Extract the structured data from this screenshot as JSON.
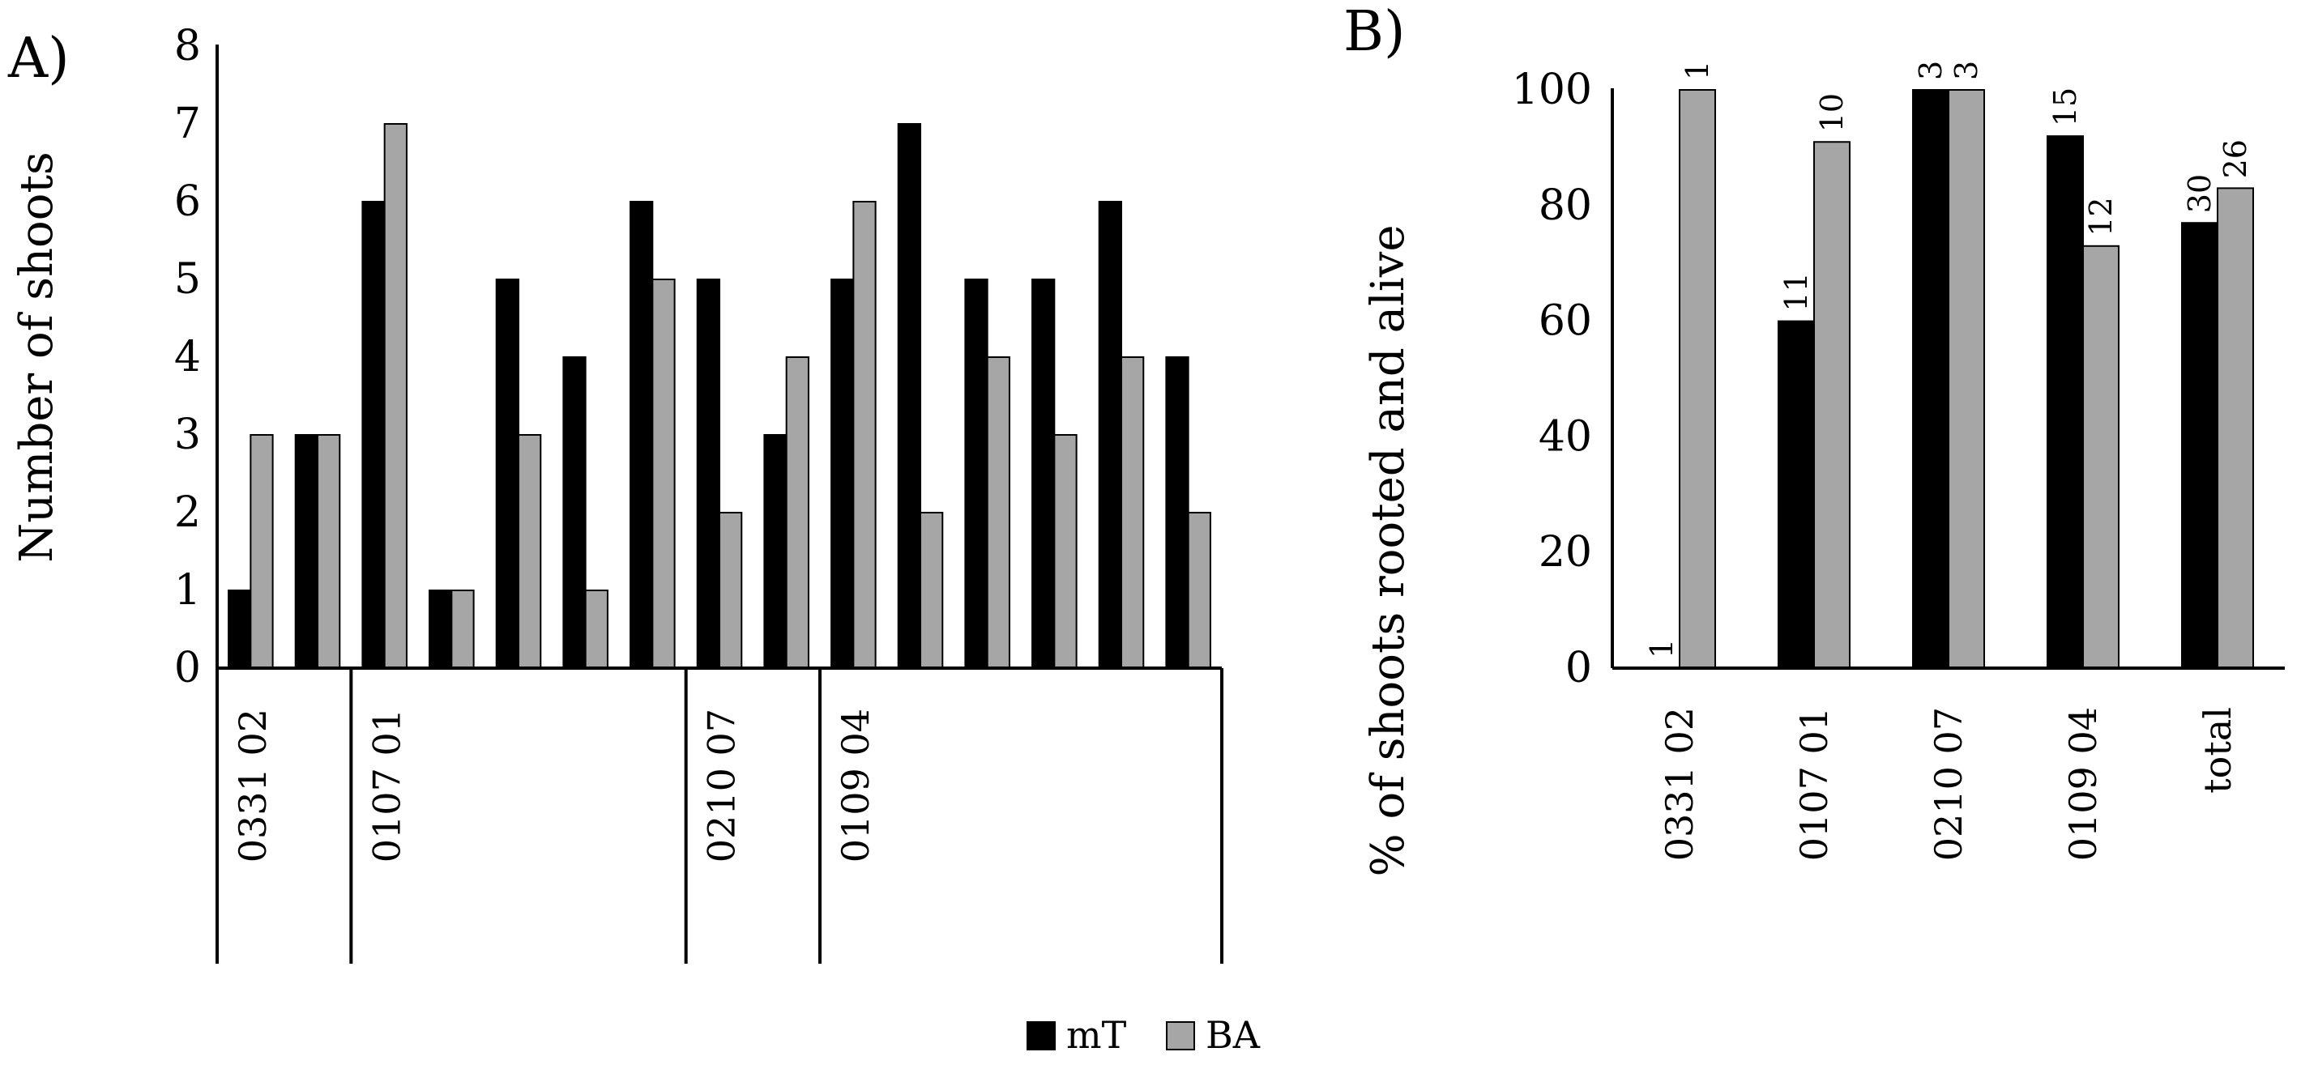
{
  "legend": {
    "items": [
      {
        "label": "mT",
        "color": "#000000"
      },
      {
        "label": "BA",
        "color": "#a6a6a6"
      }
    ],
    "position": "bottom-center"
  },
  "chart_data": [
    {
      "type": "bar",
      "panel": "A)",
      "ylabel": "Number of shoots",
      "ylim": [
        0,
        8
      ],
      "yticks": [
        0,
        1,
        2,
        3,
        4,
        5,
        6,
        7,
        8
      ],
      "grid": false,
      "groups": [
        {
          "label": "0331 02",
          "count": 2
        },
        {
          "label": "0107 01",
          "count": 5
        },
        {
          "label": "0210 07",
          "count": 2
        },
        {
          "label": "0109 04",
          "count": 6
        }
      ],
      "series": [
        {
          "name": "mT",
          "color": "#000000",
          "values": [
            1,
            3,
            6,
            1,
            5,
            4,
            6,
            5,
            3,
            5,
            7,
            5,
            5,
            6,
            4
          ]
        },
        {
          "name": "BA",
          "color": "#a6a6a6",
          "values": [
            3,
            3,
            7,
            1,
            3,
            1,
            5,
            2,
            4,
            6,
            2,
            4,
            3,
            4,
            2
          ]
        }
      ]
    },
    {
      "type": "bar",
      "panel": "B)",
      "ylabel": "% of shoots rooted and alive",
      "ylim": [
        0,
        100
      ],
      "yticks": [
        0,
        20,
        40,
        60,
        80,
        100
      ],
      "grid": false,
      "categories": [
        "0331 02",
        "0107 01",
        "0210 07",
        "0109 04",
        "total"
      ],
      "series": [
        {
          "name": "mT",
          "color": "#000000",
          "values": [
            0,
            60,
            100,
            92,
            77
          ],
          "labels": [
            "1",
            "11",
            "3",
            "15",
            "30"
          ]
        },
        {
          "name": "BA",
          "color": "#a6a6a6",
          "values": [
            100,
            91,
            100,
            73,
            83
          ],
          "labels": [
            "1",
            "10",
            "3",
            "12",
            "26"
          ]
        }
      ]
    }
  ]
}
